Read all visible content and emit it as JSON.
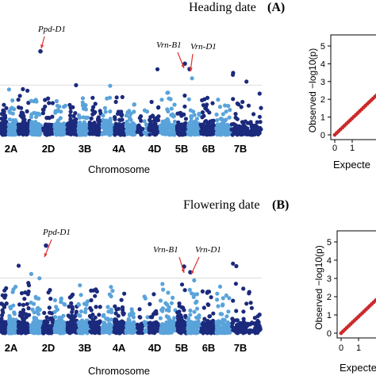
{
  "colors": {
    "dark": "#1b2a7c",
    "light": "#5aa3da",
    "arrow": "#e03030",
    "qq": "#cc2a2a"
  },
  "chart_data": [
    {
      "type": "scatter",
      "kind": "manhattan",
      "title": "Heading date",
      "panel": "A",
      "xlabel": "Chromosome",
      "chromosomes": [
        "2A",
        "2D",
        "3B",
        "4A",
        "4D",
        "5B",
        "6B",
        "7B"
      ],
      "ylim": [
        0,
        5.8
      ],
      "threshold": 2.8,
      "annotations": [
        {
          "label": "Ppd-D1",
          "chromosome": "2D",
          "value": 4.7
        },
        {
          "label": "Vrn-B1",
          "chromosome": "5B",
          "value": 4.0
        },
        {
          "label": "Vrn-D1",
          "chromosome": "5B",
          "value": 3.7
        }
      ]
    },
    {
      "type": "scatter",
      "kind": "qq",
      "xlabel": "Expecte",
      "ylabel": "Observed −log10(p)",
      "yticks": [
        "0",
        "1",
        "2",
        "3",
        "4",
        "5"
      ],
      "xticks": [
        "0",
        "1"
      ]
    },
    {
      "type": "scatter",
      "kind": "manhattan",
      "title": "Flowering date",
      "panel": "B",
      "xlabel": "Chromosome",
      "chromosomes": [
        "2A",
        "2D",
        "3B",
        "4A",
        "4D",
        "5B",
        "6B",
        "7B"
      ],
      "ylim": [
        0,
        5.0
      ],
      "threshold": 2.9,
      "annotations": [
        {
          "label": "Ppd-D1",
          "chromosome": "2D",
          "value": 4.6
        },
        {
          "label": "Vrn-B1",
          "chromosome": "5B",
          "value": 3.5
        },
        {
          "label": "Vrn-D1",
          "chromosome": "5B",
          "value": 3.2
        }
      ]
    },
    {
      "type": "scatter",
      "kind": "qq",
      "xlabel": "Expecte",
      "ylabel": "Observed −log10(p)",
      "yticks": [
        "0",
        "1",
        "2",
        "3",
        "4",
        "5"
      ],
      "xticks": [
        "0",
        "1"
      ]
    }
  ]
}
